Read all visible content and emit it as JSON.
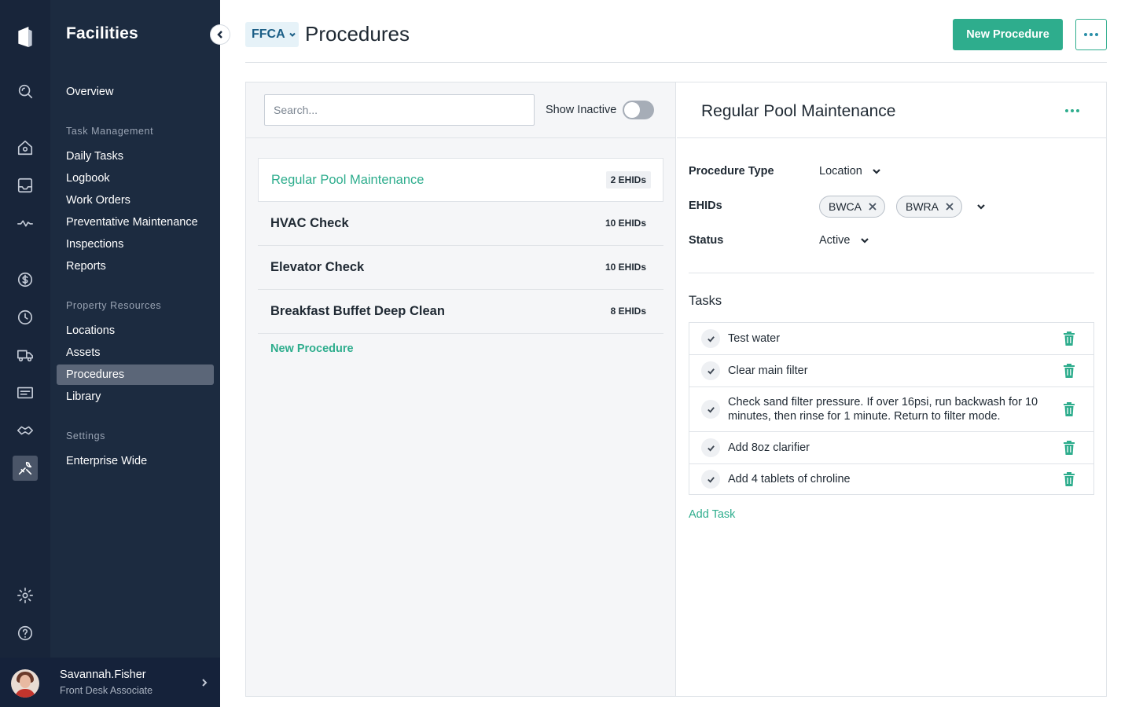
{
  "app": {
    "section_title": "Facilities"
  },
  "nav": {
    "overview": "Overview",
    "task_management": {
      "heading": "Task Management",
      "items": [
        "Daily Tasks",
        "Logbook",
        "Work Orders",
        "Preventative Maintenance",
        "Inspections",
        "Reports"
      ]
    },
    "property_resources": {
      "heading": "Property Resources",
      "items": [
        "Locations",
        "Assets",
        "Procedures",
        "Library"
      ],
      "active": "Procedures"
    },
    "settings": {
      "heading": "Settings",
      "items": [
        "Enterprise Wide"
      ]
    }
  },
  "rail_icons": [
    "logo-icon",
    "search-icon",
    "home-icon",
    "inbox-icon",
    "activity-icon",
    "dollar-icon",
    "clock-icon",
    "truck-icon",
    "id-card-icon",
    "handshake-icon",
    "wrench-icon",
    "gear-icon",
    "help-icon"
  ],
  "user": {
    "name": "Savannah.Fisher",
    "role": "Front Desk Associate"
  },
  "header": {
    "org": "FFCA",
    "title": "Procedures",
    "primary_button": "New Procedure"
  },
  "list": {
    "search_placeholder": "Search...",
    "show_inactive_label": "Show Inactive",
    "show_inactive": false,
    "procedures": [
      {
        "name": "Regular Pool Maintenance",
        "count": "2 EHIDs",
        "selected": true
      },
      {
        "name": "HVAC Check",
        "count": "10 EHIDs",
        "selected": false
      },
      {
        "name": "Elevator Check",
        "count": "10 EHIDs",
        "selected": false
      },
      {
        "name": "Breakfast Buffet Deep Clean",
        "count": "8 EHIDs",
        "selected": false
      }
    ],
    "new_link": "New Procedure"
  },
  "detail": {
    "title": "Regular Pool Maintenance",
    "fields": {
      "procedure_type_label": "Procedure Type",
      "procedure_type_value": "Location",
      "ehids_label": "EHIDs",
      "ehids": [
        "BWCA",
        "BWRA"
      ],
      "status_label": "Status",
      "status_value": "Active"
    },
    "tasks_title": "Tasks",
    "tasks": [
      "Test water",
      "Clear main filter",
      "Check sand filter pressure. If over 16psi, run backwash for 10 minutes, then rinse for 1 minute. Return to filter mode.",
      "Add 8oz clarifier",
      "Add 4 tablets of chroline"
    ],
    "add_task": "Add Task"
  },
  "colors": {
    "accent": "#2ead8d",
    "sidebar": "#1c2b40",
    "rail": "#18253a"
  }
}
